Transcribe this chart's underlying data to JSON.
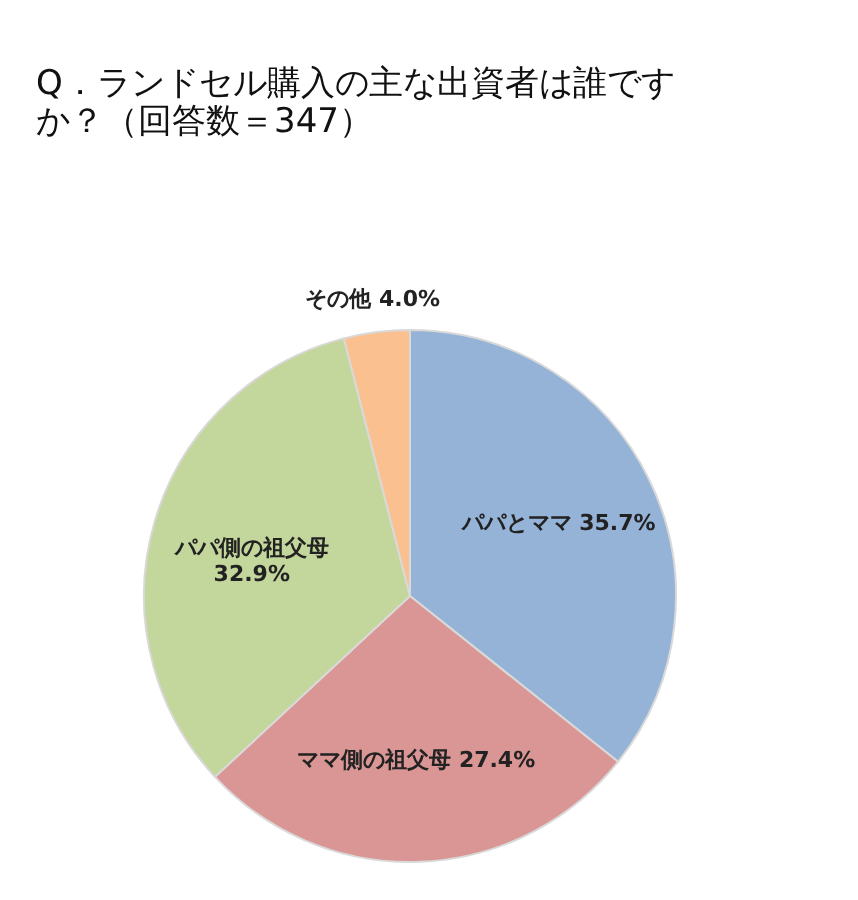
{
  "chart_data": {
    "type": "pie",
    "title": "Q．ランドセル購入の主な出資者は誰ですか？（回答数＝347）",
    "categories": [
      "パパとママ",
      "ママ側の祖父母",
      "パパ側の祖父母",
      "その他"
    ],
    "values": [
      35.7,
      27.4,
      32.9,
      4.0
    ],
    "value_labels": [
      "35.7%",
      "27.4%",
      "32.9%",
      "4.0%"
    ],
    "colors": [
      "#95b3d7",
      "#d99694",
      "#c3d69b",
      "#fac090"
    ]
  }
}
